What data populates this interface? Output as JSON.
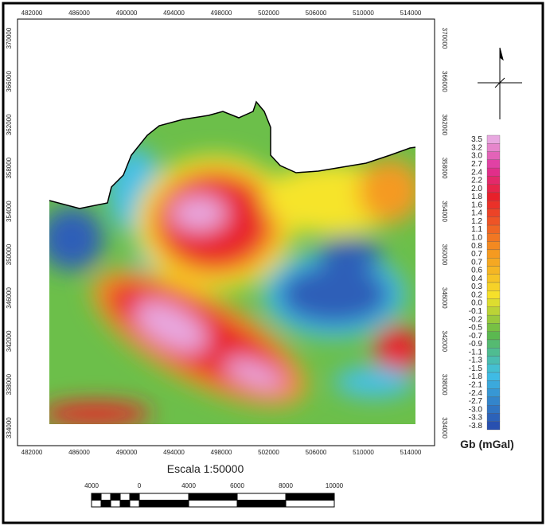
{
  "map": {
    "x_labels": [
      "482000",
      "486000",
      "490000",
      "494000",
      "498000",
      "502000",
      "506000",
      "510000",
      "514000"
    ],
    "y_labels": [
      "370000",
      "366000",
      "362000",
      "358000",
      "354000",
      "350000",
      "346000",
      "342000",
      "338000",
      "334000"
    ],
    "legend": {
      "title": "Gb (mGal)",
      "values": [
        "3.5",
        "3.2",
        "3.0",
        "2.7",
        "2.4",
        "2.2",
        "2.0",
        "1.8",
        "1.6",
        "1.4",
        "1.2",
        "1.1",
        "1.0",
        "0.8",
        "0.7",
        "0.7",
        "0.6",
        "0.4",
        "0.3",
        "0.2",
        "0.0",
        "-0.1",
        "-0.2",
        "-0.5",
        "-0.7",
        "-0.9",
        "-1.1",
        "-1.3",
        "-1.5",
        "-1.8",
        "-2.1",
        "-2.4",
        "-2.7",
        "-3.0",
        "-3.3",
        "-3.8"
      ]
    },
    "scale": {
      "title": "Escala 1:50000",
      "labels": [
        "4000",
        "0",
        "4000",
        "6000",
        "8000",
        "10000"
      ]
    }
  }
}
